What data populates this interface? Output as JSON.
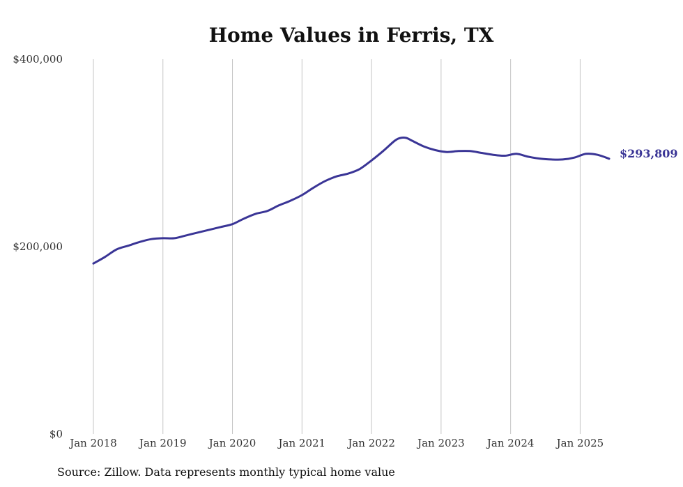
{
  "chart_data": {
    "type": "line",
    "title": "Home Values in Ferris, TX",
    "xlabel": "",
    "ylabel": "",
    "ylim": [
      0,
      400000
    ],
    "y_ticks": [
      {
        "value": 0,
        "label": "$0"
      },
      {
        "value": 200000,
        "label": "$200,000"
      },
      {
        "value": 400000,
        "label": "$400,000"
      }
    ],
    "x_ticks": [
      {
        "date": "2018-01",
        "label": "Jan 2018"
      },
      {
        "date": "2019-01",
        "label": "Jan 2019"
      },
      {
        "date": "2020-01",
        "label": "Jan 2020"
      },
      {
        "date": "2021-01",
        "label": "Jan 2021"
      },
      {
        "date": "2022-01",
        "label": "Jan 2022"
      },
      {
        "date": "2023-01",
        "label": "Jan 2023"
      },
      {
        "date": "2024-01",
        "label": "Jan 2024"
      },
      {
        "date": "2025-01",
        "label": "Jan 2025"
      }
    ],
    "xlim": [
      "2018-01",
      "2025-06"
    ],
    "grid": {
      "vertical": true,
      "horizontal": false
    },
    "line_color": "#3a3596",
    "series": [
      {
        "x": [
          "2018-01",
          "2018-03",
          "2018-05",
          "2018-07",
          "2018-09",
          "2018-11",
          "2019-01",
          "2019-03",
          "2019-05",
          "2019-07",
          "2019-09",
          "2019-11",
          "2020-01",
          "2020-03",
          "2020-05",
          "2020-07",
          "2020-09",
          "2020-11",
          "2021-01",
          "2021-03",
          "2021-05",
          "2021-07",
          "2021-09",
          "2021-11",
          "2022-01",
          "2022-03",
          "2022-05",
          "2022-06",
          "2022-07",
          "2022-08",
          "2022-10",
          "2022-12",
          "2023-02",
          "2023-04",
          "2023-06",
          "2023-08",
          "2023-10",
          "2023-12",
          "2024-02",
          "2024-04",
          "2024-06",
          "2024-08",
          "2024-10",
          "2024-12",
          "2025-02",
          "2025-04",
          "2025-06"
        ],
        "y": [
          182000,
          189000,
          197000,
          201000,
          205000,
          208000,
          209000,
          209000,
          212000,
          215000,
          218000,
          221000,
          224000,
          230000,
          235000,
          238000,
          244000,
          249000,
          255000,
          263000,
          270000,
          275000,
          278000,
          283000,
          292000,
          302000,
          313000,
          316000,
          316000,
          313000,
          307000,
          303000,
          301000,
          302000,
          302000,
          300000,
          298000,
          297000,
          299000,
          296000,
          294000,
          293000,
          293000,
          295000,
          299000,
          298000,
          293809
        ]
      }
    ],
    "end_label": "$293,809",
    "source_note": "Source: Zillow. Data represents monthly typical home value"
  }
}
